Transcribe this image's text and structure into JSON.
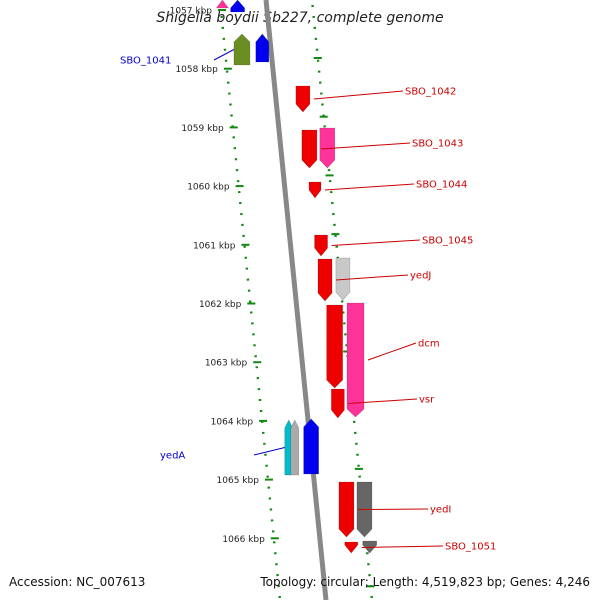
{
  "title": "Shigella boydii Sb227, complete genome",
  "footer": {
    "accession": "Accession: NC_007613",
    "summary": "Topology: circular; Length: 4,519,823 bp; Genes: 4,246"
  },
  "colors": {
    "backbone": "#888888",
    "tick": "#118811",
    "label_forward": "#cc0000",
    "label_reverse": "#0000cc"
  },
  "scale": {
    "unit": "kbp",
    "ticks": [
      "1057 kbp",
      "1058 kbp",
      "1059 kbp",
      "1060 kbp",
      "1061 kbp",
      "1062 kbp",
      "1063 kbp",
      "1064 kbp",
      "1065 kbp",
      "1066 kbp"
    ]
  },
  "genes": [
    {
      "name": "",
      "strand": "reverse",
      "color": "#ff3399"
    },
    {
      "name": "",
      "strand": "reverse",
      "color": "#0000ee"
    },
    {
      "name": "SBO_1041",
      "strand": "reverse",
      "color": "#6b8e23"
    },
    {
      "name": "",
      "strand": "reverse",
      "color": "#0000ee"
    },
    {
      "name": "SBO_1042",
      "strand": "forward",
      "color": "#ee0000"
    },
    {
      "name": "SBO_1043",
      "strand": "forward",
      "color": "#ee0000"
    },
    {
      "name": "",
      "strand": "forward",
      "color": "#ff3399"
    },
    {
      "name": "SBO_1044",
      "strand": "forward",
      "color": "#ee0000"
    },
    {
      "name": "SBO_1045",
      "strand": "forward",
      "color": "#ee0000"
    },
    {
      "name": "yedJ",
      "strand": "forward",
      "color": "#ee0000"
    },
    {
      "name": "",
      "strand": "forward",
      "color": "#c8c8c8"
    },
    {
      "name": "dcm",
      "strand": "forward",
      "color": "#ff3399"
    },
    {
      "name": "",
      "strand": "forward",
      "color": "#ee0000"
    },
    {
      "name": "vsr",
      "strand": "forward",
      "color": "#ee0000"
    },
    {
      "name": "yedA",
      "strand": "reverse",
      "color": "#00bbcc"
    },
    {
      "name": "",
      "strand": "reverse",
      "color": "#aaaaaa"
    },
    {
      "name": "",
      "strand": "reverse",
      "color": "#0000ee"
    },
    {
      "name": "yedI",
      "strand": "forward",
      "color": "#ee0000"
    },
    {
      "name": "",
      "strand": "forward",
      "color": "#666666"
    },
    {
      "name": "SBO_1051",
      "strand": "forward",
      "color": "#ee0000"
    },
    {
      "name": "",
      "strand": "forward",
      "color": "#666666"
    }
  ]
}
